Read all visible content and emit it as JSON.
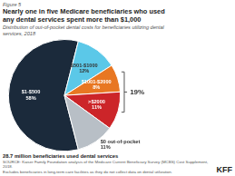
{
  "chart_data": {
    "type": "pie",
    "figure_label": "Figure 5",
    "title": "Nearly one in five Medicare beneficiaries who used\nany dental services spent more than $1,000",
    "subtitle": "Distribution of out-of-pocket dental costs for beneficiaries utilizing dental\nservices, 2018",
    "categories": [
      "$1-$500",
      "$501-$1000",
      "$1001-$2000",
      ">$2000",
      "$0 out-of-pocket"
    ],
    "values": [
      58,
      12,
      8,
      11,
      11
    ],
    "value_labels": [
      "58%",
      "12%",
      "8%",
      "11%",
      "11%"
    ],
    "colors": [
      "#1b2a3b",
      "#5bc8e8",
      "#e87722",
      "#cc2529",
      "#b8bfc6"
    ],
    "data_labels": true,
    "annotations": [
      "19%"
    ],
    "footer": "28.7 million beneficiaries used dental services",
    "source": "SOURCE: Kaiser Family Foundation analysis of the Medicare Current Beneficiary Survey (MCBS) Cost Supplement, 2018.\nExcludes beneficiaries in long-term care facilities as they do not collect data on dental utilization.",
    "logo": "KFF"
  }
}
